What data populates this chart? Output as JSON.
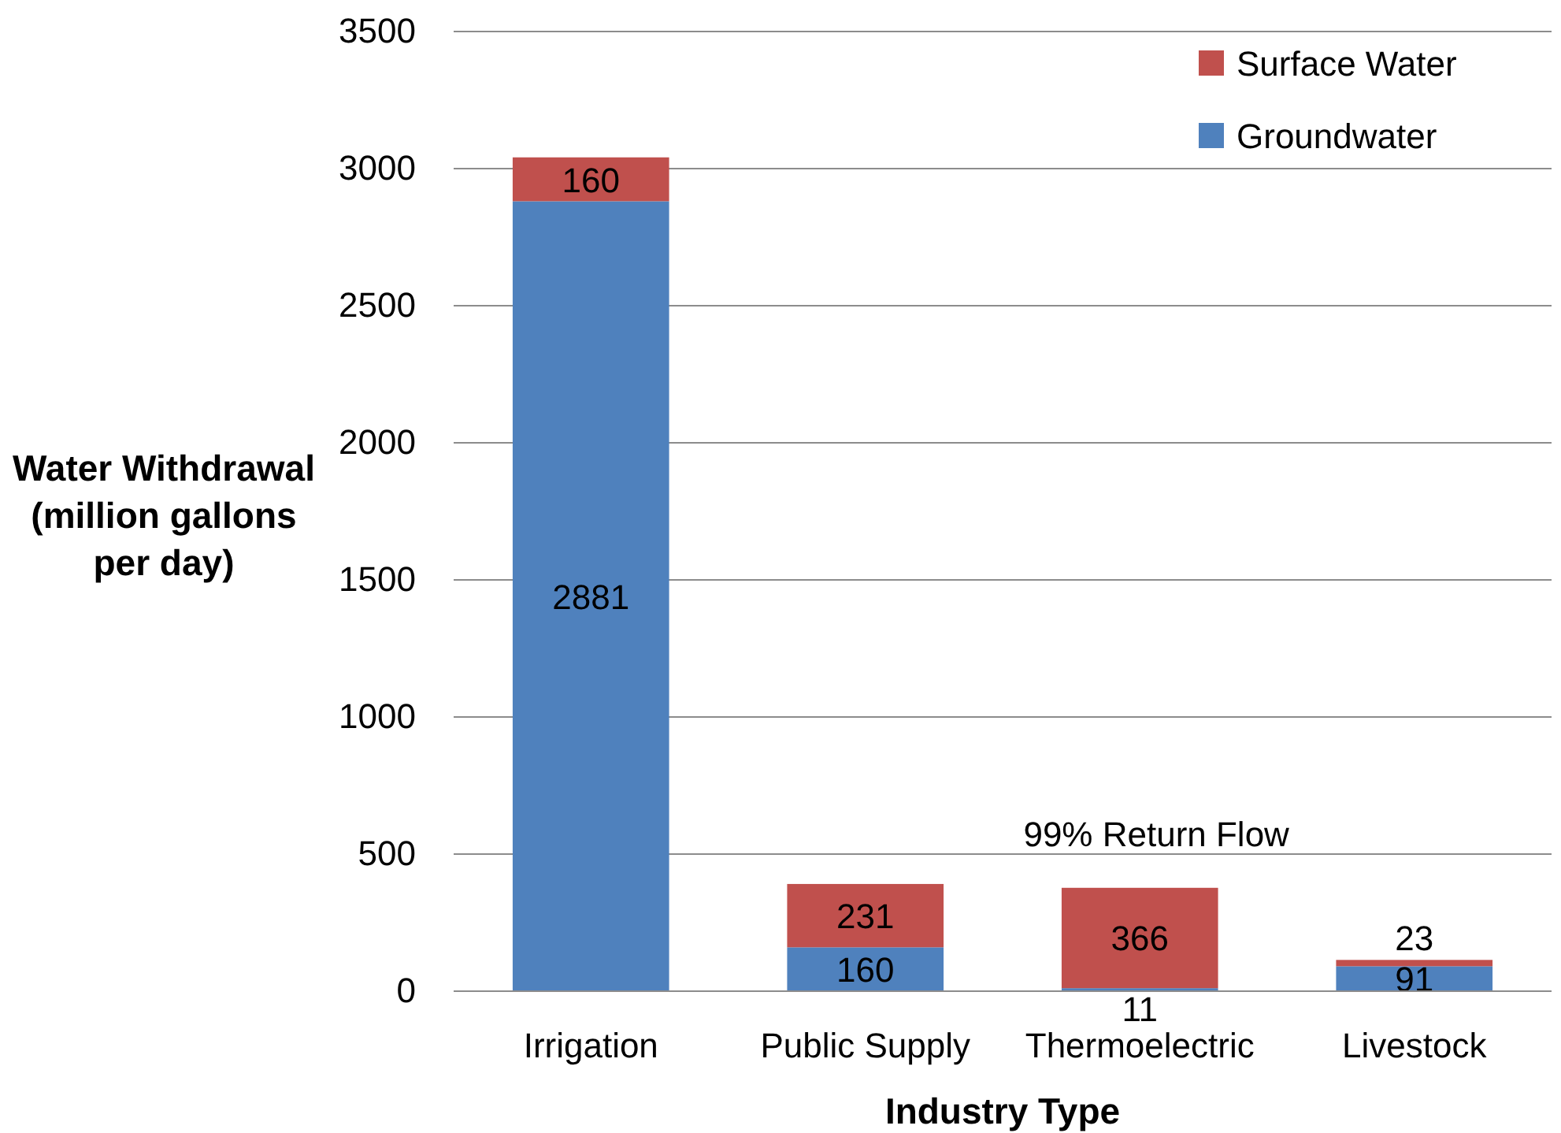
{
  "chart_data": {
    "type": "bar",
    "stacked": true,
    "xlabel": "Industry Type",
    "ylabel": "Water Withdrawal (million gallons per day)",
    "categories": [
      "Irrigation",
      "Public Supply",
      "Thermoelectric",
      "Livestock"
    ],
    "series": [
      {
        "name": "Groundwater",
        "color": "#4f81bd",
        "values": [
          2881,
          160,
          11,
          91
        ]
      },
      {
        "name": "Surface Water",
        "color": "#c0504d",
        "values": [
          160,
          231,
          366,
          23
        ]
      }
    ],
    "ylim": [
      0,
      3500
    ],
    "yticks": [
      0,
      500,
      1000,
      1500,
      2000,
      2500,
      3000,
      3500
    ],
    "grid": "y",
    "legend": "top right",
    "data_labels": true,
    "annotations": [
      "99% Return Flow"
    ]
  }
}
